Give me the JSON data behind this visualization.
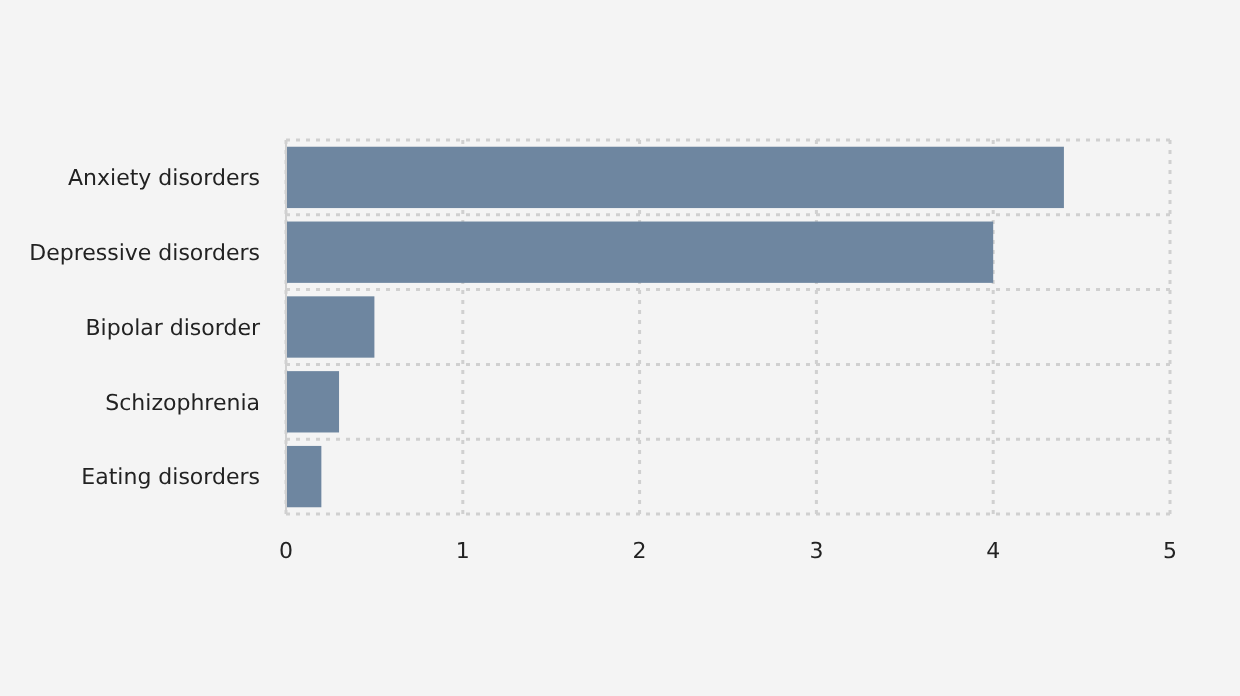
{
  "chart_data": {
    "type": "bar",
    "orientation": "horizontal",
    "categories": [
      "Anxiety disorders",
      "Depressive disorders",
      "Bipolar disorder",
      "Schizophrenia",
      "Eating disorders"
    ],
    "values": [
      4.4,
      4.0,
      0.5,
      0.3,
      0.2
    ],
    "color": "#6e86a0",
    "xlim": [
      0,
      5
    ],
    "xticks": [
      0,
      1,
      2,
      3,
      4,
      5
    ],
    "grid": true
  }
}
